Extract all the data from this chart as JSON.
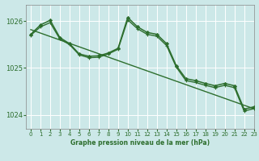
{
  "title": "Graphe pression niveau de la mer (hPa)",
  "bg_color": "#cce8e8",
  "grid_color": "#ffffff",
  "line_color": "#2d6e2d",
  "xlim": [
    -0.5,
    23
  ],
  "ylim": [
    1023.7,
    1026.35
  ],
  "yticks": [
    1024,
    1025,
    1026
  ],
  "xticks": [
    0,
    1,
    2,
    3,
    4,
    5,
    6,
    7,
    8,
    9,
    10,
    11,
    12,
    13,
    14,
    15,
    16,
    17,
    18,
    19,
    20,
    21,
    22,
    23
  ],
  "line_diamond": {
    "x": [
      0,
      1,
      2,
      3,
      4,
      5,
      6,
      7,
      8,
      9,
      10,
      11,
      12,
      13,
      14,
      15,
      16,
      17,
      18,
      19,
      20,
      21,
      22,
      23
    ],
    "y": [
      1025.72,
      1025.92,
      1026.02,
      1025.65,
      1025.52,
      1025.3,
      1025.25,
      1025.26,
      1025.32,
      1025.42,
      1026.08,
      1025.88,
      1025.76,
      1025.72,
      1025.52,
      1025.05,
      1024.77,
      1024.73,
      1024.67,
      1024.62,
      1024.67,
      1024.62,
      1024.12,
      1024.17
    ]
  },
  "line_cross": {
    "x": [
      0,
      1,
      2,
      3,
      4,
      5,
      6,
      7,
      8,
      9,
      10,
      11,
      12,
      13,
      14,
      15,
      16,
      17,
      18,
      19,
      20,
      21,
      22,
      23
    ],
    "y": [
      1025.7,
      1025.88,
      1025.97,
      1025.62,
      1025.5,
      1025.28,
      1025.22,
      1025.23,
      1025.3,
      1025.4,
      1026.03,
      1025.84,
      1025.72,
      1025.68,
      1025.48,
      1025.02,
      1024.73,
      1024.69,
      1024.63,
      1024.58,
      1024.63,
      1024.58,
      1024.08,
      1024.13
    ]
  },
  "line_straight": {
    "x": [
      0,
      23
    ],
    "y": [
      1025.82,
      1024.13
    ]
  }
}
